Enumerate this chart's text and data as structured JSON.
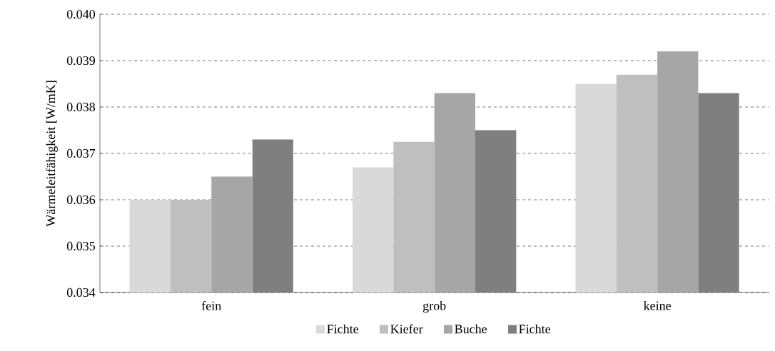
{
  "chart_data": {
    "type": "bar",
    "ylabel": "Wärmeleitfähigkeit [W/mK]",
    "categories": [
      "fein",
      "grob",
      "keine"
    ],
    "series": [
      {
        "name": "Fichte",
        "color": "#d9d9d9",
        "values": [
          0.036,
          0.0367,
          0.0385
        ]
      },
      {
        "name": "Kiefer",
        "color": "#bfbfbf",
        "values": [
          0.036,
          0.03725,
          0.0387
        ]
      },
      {
        "name": "Buche",
        "color": "#a6a6a6",
        "values": [
          0.0365,
          0.0383,
          0.0392
        ]
      },
      {
        "name": "Fichte",
        "color": "#7f7f7f",
        "values": [
          0.0373,
          0.0375,
          0.0383
        ]
      }
    ],
    "ylim": [
      0.034,
      0.04
    ],
    "yticks": [
      {
        "value": 0.034,
        "label": "0.034"
      },
      {
        "value": 0.035,
        "label": "0.035"
      },
      {
        "value": 0.036,
        "label": "0.036"
      },
      {
        "value": 0.037,
        "label": "0.037"
      },
      {
        "value": 0.038,
        "label": "0.038"
      },
      {
        "value": 0.039,
        "label": "0.039"
      },
      {
        "value": 0.04,
        "label": "0.040"
      }
    ],
    "grid": "y",
    "legend": "bottom"
  }
}
